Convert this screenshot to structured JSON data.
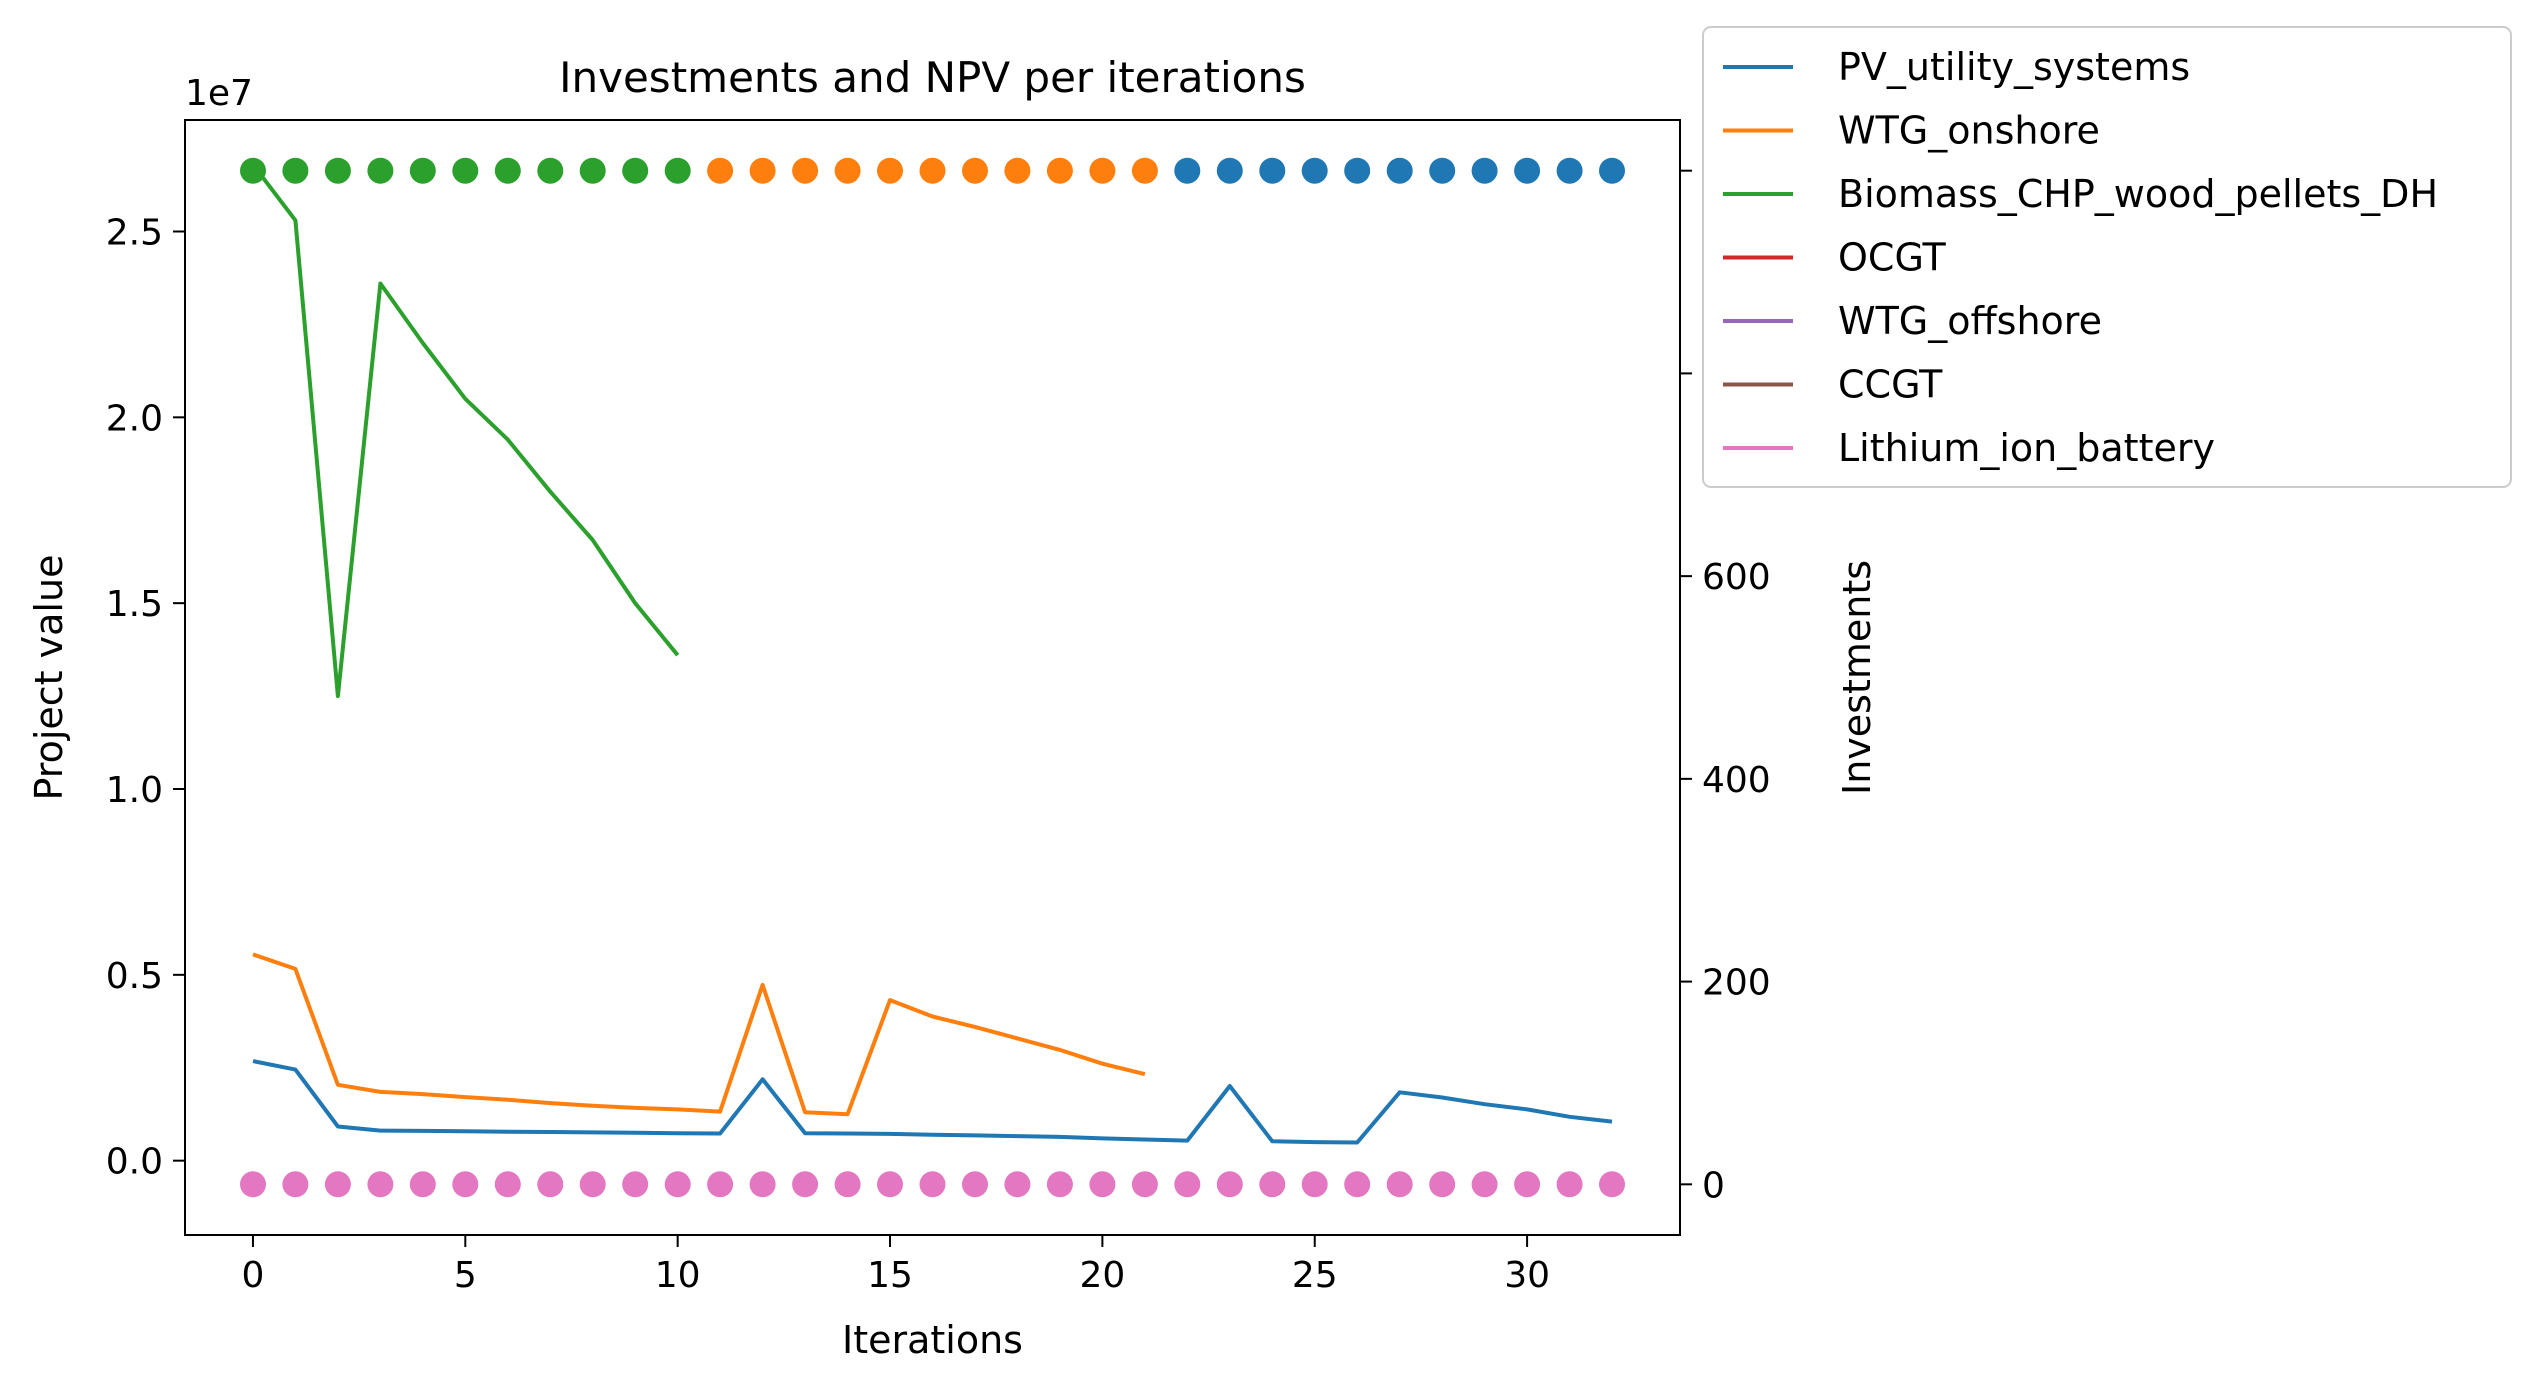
{
  "chart_data": {
    "type": "line",
    "title": "Investments and NPV per iterations",
    "xlabel": "Iterations",
    "ylabel": "Project value",
    "y2label": "Investments",
    "y_offset_text": "1e7",
    "xlim": [
      -1.6,
      33.6
    ],
    "ylim": [
      -2000000,
      28000000
    ],
    "y2lim": [
      -50,
      1050
    ],
    "xticks": [
      0,
      5,
      10,
      15,
      20,
      25,
      30
    ],
    "xtick_labels": [
      "0",
      "5",
      "10",
      "15",
      "20",
      "25",
      "30"
    ],
    "yticks": [
      0,
      5000000,
      10000000,
      15000000,
      20000000,
      25000000
    ],
    "ytick_labels": [
      "0.0",
      "0.5",
      "1.0",
      "1.5",
      "2.0",
      "2.5"
    ],
    "y2ticks": [
      0,
      200,
      400,
      600,
      800,
      1000
    ],
    "y2tick_labels": [
      "0",
      "200",
      "400",
      "600",
      "800",
      "1000"
    ],
    "legend_position": "outside-upper-right",
    "series": [
      {
        "name": "PV_utility_systems",
        "color": "#1f77b4",
        "x": [
          0,
          1,
          2,
          3,
          4,
          5,
          6,
          7,
          8,
          9,
          10,
          11,
          12,
          13,
          14,
          15,
          16,
          17,
          18,
          19,
          20,
          21,
          22,
          23,
          24,
          25,
          26,
          27,
          28,
          29,
          30,
          31,
          32
        ],
        "values": [
          2680000,
          2450000,
          920000,
          810000,
          800000,
          790000,
          780000,
          770000,
          760000,
          750000,
          740000,
          730000,
          2190000,
          740000,
          730000,
          720000,
          700000,
          680000,
          660000,
          640000,
          600000,
          570000,
          540000,
          2010000,
          520000,
          500000,
          490000,
          1840000,
          1700000,
          1520000,
          1380000,
          1180000,
          1050000
        ]
      },
      {
        "name": "WTG_onshore",
        "color": "#ff7f0e",
        "x": [
          0,
          1,
          2,
          3,
          4,
          5,
          6,
          7,
          8,
          9,
          10,
          11,
          12,
          13,
          14,
          15,
          16,
          17,
          18,
          19,
          20,
          21
        ],
        "values": [
          5550000,
          5160000,
          2040000,
          1850000,
          1790000,
          1710000,
          1640000,
          1550000,
          1480000,
          1420000,
          1380000,
          1320000,
          4730000,
          1300000,
          1250000,
          4320000,
          3880000,
          3600000,
          3290000,
          2980000,
          2610000,
          2330000
        ]
      },
      {
        "name": "Biomass_CHP_wood_pellets_DH",
        "color": "#2ca02c",
        "x": [
          0,
          1,
          2,
          3,
          4,
          5,
          6,
          7,
          8,
          9,
          10
        ],
        "values": [
          26800000,
          25300000,
          12500000,
          23600000,
          22000000,
          20500000,
          19400000,
          18000000,
          16700000,
          15000000,
          13600000
        ]
      },
      {
        "name": "OCGT",
        "color": "#d62728",
        "x": [],
        "values": []
      },
      {
        "name": "WTG_offshore",
        "color": "#9467bd",
        "x": [],
        "values": []
      },
      {
        "name": "CCGT",
        "color": "#8c564b",
        "x": [],
        "values": []
      },
      {
        "name": "Lithium_ion_battery",
        "color": "#e377c2",
        "x": [],
        "values": []
      }
    ],
    "investments": [
      {
        "series": "Biomass_CHP_wood_pellets_DH",
        "x": [
          0,
          1,
          2,
          3,
          4,
          5,
          6,
          7,
          8,
          9,
          10
        ],
        "values": [
          1000,
          1000,
          1000,
          1000,
          1000,
          1000,
          1000,
          1000,
          1000,
          1000,
          1000
        ]
      },
      {
        "series": "WTG_onshore",
        "x": [
          11,
          12,
          13,
          14,
          15,
          16,
          17,
          18,
          19,
          20,
          21
        ],
        "values": [
          1000,
          1000,
          1000,
          1000,
          1000,
          1000,
          1000,
          1000,
          1000,
          1000,
          1000
        ]
      },
      {
        "series": "PV_utility_systems",
        "x": [
          22,
          23,
          24,
          25,
          26,
          27,
          28,
          29,
          30,
          31,
          32
        ],
        "values": [
          1000,
          1000,
          1000,
          1000,
          1000,
          1000,
          1000,
          1000,
          1000,
          1000,
          1000
        ]
      },
      {
        "series": "Lithium_ion_battery",
        "x": [
          0,
          1,
          2,
          3,
          4,
          5,
          6,
          7,
          8,
          9,
          10,
          11,
          12,
          13,
          14,
          15,
          16,
          17,
          18,
          19,
          20,
          21,
          22,
          23,
          24,
          25,
          26,
          27,
          28,
          29,
          30,
          31,
          32
        ],
        "values": [
          0,
          0,
          0,
          0,
          0,
          0,
          0,
          0,
          0,
          0,
          0,
          0,
          0,
          0,
          0,
          0,
          0,
          0,
          0,
          0,
          0,
          0,
          0,
          0,
          0,
          0,
          0,
          0,
          0,
          0,
          0,
          0,
          0
        ]
      }
    ]
  }
}
